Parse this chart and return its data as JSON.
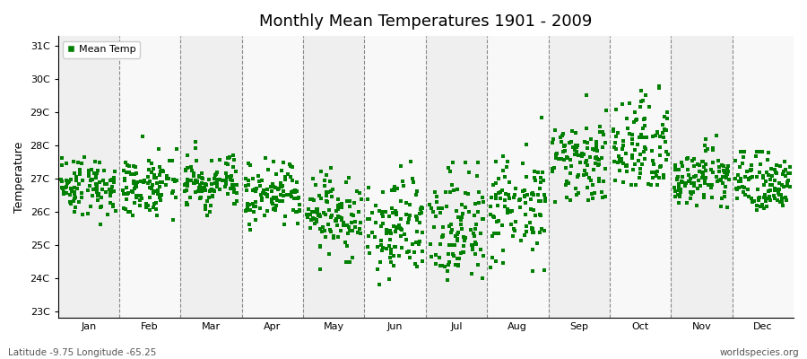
{
  "title": "Monthly Mean Temperatures 1901 - 2009",
  "ylabel": "Temperature",
  "xlabel": "",
  "footer_left": "Latitude -9.75 Longitude -65.25",
  "footer_right": "worldspecies.org",
  "legend_label": "Mean Temp",
  "months": [
    "Jan",
    "Feb",
    "Mar",
    "Apr",
    "May",
    "Jun",
    "Jul",
    "Aug",
    "Sep",
    "Oct",
    "Nov",
    "Dec"
  ],
  "yticks": [
    23,
    24,
    25,
    26,
    27,
    28,
    29,
    30,
    31
  ],
  "ylim": [
    22.8,
    31.3
  ],
  "dot_color": "#008000",
  "dot_size": 8,
  "n_years": 109,
  "seed": 42,
  "monthly_means": [
    26.8,
    26.8,
    26.8,
    26.6,
    25.9,
    25.6,
    25.4,
    26.2,
    27.5,
    28.0,
    27.0,
    26.9
  ],
  "monthly_stds": [
    0.45,
    0.45,
    0.4,
    0.45,
    0.65,
    0.75,
    0.9,
    0.8,
    0.65,
    0.65,
    0.45,
    0.45
  ],
  "monthly_mins": [
    25.5,
    25.3,
    25.3,
    25.4,
    23.7,
    23.2,
    23.0,
    24.2,
    26.3,
    26.8,
    25.3,
    25.6
  ],
  "monthly_maxs": [
    28.0,
    28.4,
    28.2,
    28.2,
    28.4,
    27.6,
    27.5,
    29.9,
    30.1,
    30.6,
    28.5,
    27.8
  ],
  "col_bg_odd": "#efefef",
  "col_bg_even": "#f8f8f8"
}
